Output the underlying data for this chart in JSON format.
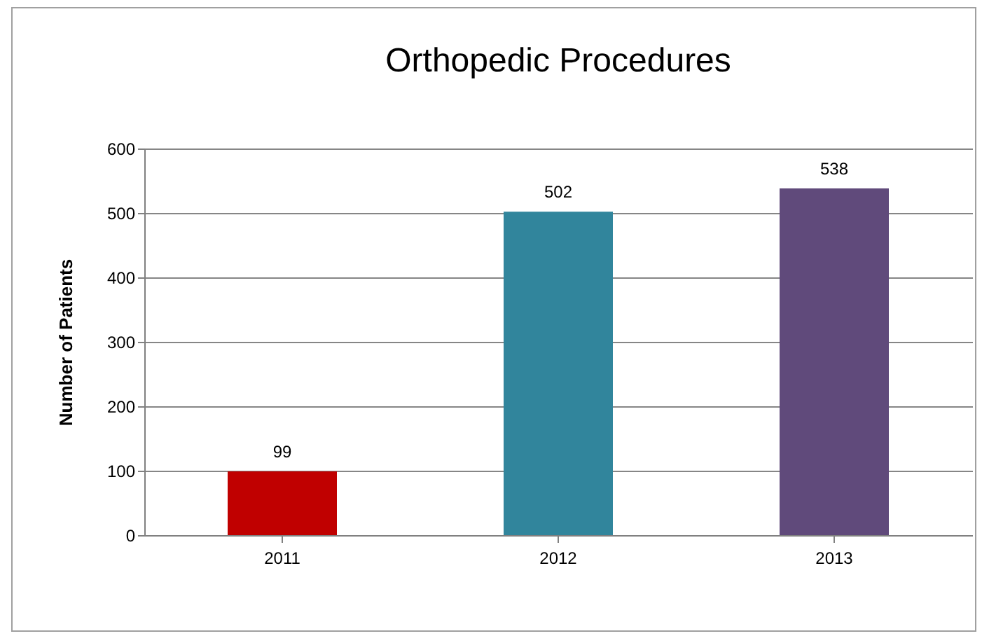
{
  "chart_data": {
    "type": "bar",
    "title": "Orthopedic Procedures",
    "ylabel": "Number of Patients",
    "categories": [
      "2011",
      "2012",
      "2013"
    ],
    "values": [
      99,
      502,
      538
    ],
    "colors": [
      "#c00000",
      "#31859c",
      "#604a7b"
    ],
    "ylim": [
      0,
      600
    ],
    "yticks": [
      0,
      100,
      200,
      300,
      400,
      500,
      600
    ],
    "grid": "y",
    "data_labels": true
  }
}
